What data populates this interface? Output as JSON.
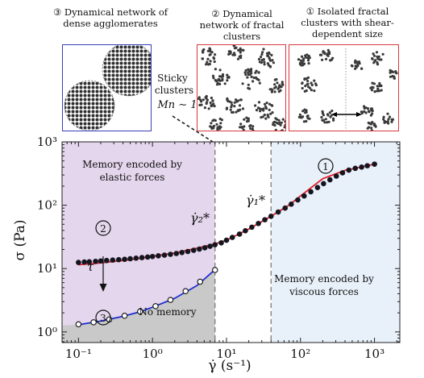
{
  "panels": [
    {
      "number": "③",
      "caption": "Dynamical network of dense agglomerates",
      "border_color": "#3a3fb8"
    },
    {
      "number": "②",
      "caption": "Dynamical network of fractal clusters",
      "border_color": "#d8383f"
    },
    {
      "number": "①",
      "caption": "Isolated fractal clusters with shear-dependent size",
      "border_color": "#d8383f"
    }
  ],
  "sticky_note": {
    "line1": "Sticky",
    "line2": "clusters",
    "formula": "Mn ∼ 1"
  },
  "region_labels": {
    "elastic_line1": "Memory encoded by",
    "elastic_line2": "elastic forces",
    "viscous_line1": "Memory encoded by",
    "viscous_line2": "viscous forces",
    "no_memory": "No memory"
  },
  "markers": {
    "one": "1",
    "two": "2",
    "three": "3"
  },
  "annotations": {
    "tau": "τ",
    "gamma2": "γ̇₂*",
    "gamma1": "γ̇₁*"
  },
  "colors": {
    "elastic_region": "#e4d6ec",
    "viscous_region": "#e8f0f9",
    "no_memory_region": "#c9c9c9",
    "red_fit": "#e0202a",
    "blue_fit": "#1f2fd0",
    "points": "#15151f"
  },
  "chart_data": {
    "type": "scatter",
    "xlabel": "γ̇ (s⁻¹)",
    "ylabel": "σ (Pa)",
    "xscale": "log",
    "yscale": "log",
    "xlim": [
      0.06,
      2200
    ],
    "ylim": [
      0.68,
      1000
    ],
    "x_ticks": [
      0.1,
      1,
      10,
      100,
      1000
    ],
    "x_tick_labels": [
      "10⁻¹",
      "10⁰",
      "10¹",
      "10²",
      "10³"
    ],
    "y_ticks": [
      1,
      10,
      100,
      1000
    ],
    "y_tick_labels": [
      "10⁰",
      "10¹",
      "10²",
      "10³"
    ],
    "critical_rates": {
      "gamma2_star": 7,
      "gamma1_star": 40
    },
    "series": [
      {
        "marker": "filled-circle",
        "x": [
          0.1,
          0.12,
          0.14,
          0.17,
          0.2,
          0.24,
          0.29,
          0.35,
          0.42,
          0.5,
          0.6,
          0.72,
          0.86,
          1.0,
          1.2,
          1.45,
          1.75,
          2.1,
          2.5,
          3.0,
          3.6,
          4.3,
          5.1,
          6.0,
          7.0,
          8.5,
          10,
          12,
          15,
          18,
          22,
          27,
          33,
          40,
          50,
          62,
          75,
          92,
          112,
          138,
          170,
          205,
          250,
          305,
          370,
          450,
          550,
          670,
          800,
          1000
        ],
        "y": [
          12.5,
          12.7,
          12.8,
          13.0,
          13.2,
          13.4,
          13.6,
          13.8,
          14.0,
          14.3,
          14.6,
          14.9,
          15.2,
          15.5,
          15.9,
          16.3,
          16.8,
          17.3,
          17.9,
          18.6,
          19.4,
          20.3,
          21.3,
          22.5,
          23.8,
          25.5,
          28.0,
          31.0,
          35.0,
          39.5,
          45.0,
          51.5,
          59.0,
          67.0,
          78.0,
          90.0,
          104,
          121,
          140,
          163,
          190,
          219,
          252,
          288,
          324,
          358,
          382,
          400,
          420,
          445
        ]
      },
      {
        "marker": "open-circle",
        "x": [
          0.1,
          0.16,
          0.26,
          0.42,
          0.68,
          1.1,
          1.75,
          2.8,
          4.4,
          7.0
        ],
        "y": [
          1.32,
          1.42,
          1.57,
          1.8,
          2.1,
          2.55,
          3.2,
          4.4,
          6.2,
          9.5
        ]
      },
      {
        "name": "red fit",
        "line": true,
        "x": [
          0.1,
          0.2,
          0.4,
          0.7,
          1.0,
          2.0,
          4.0,
          7.0,
          10,
          20,
          40,
          70,
          100,
          200,
          400,
          700,
          1000
        ],
        "y": [
          11.5,
          12.3,
          13.4,
          14.6,
          15.6,
          17.6,
          21.0,
          24.5,
          28.0,
          42.0,
          67.0,
          100,
          140,
          262,
          355,
          405,
          445
        ]
      },
      {
        "name": "blue fit",
        "line": true,
        "x": [
          0.1,
          0.2,
          0.4,
          0.7,
          1.0,
          2.0,
          4.0,
          7.0
        ],
        "y": [
          1.3,
          1.48,
          1.76,
          2.1,
          2.45,
          3.4,
          5.4,
          9.6
        ]
      }
    ]
  }
}
